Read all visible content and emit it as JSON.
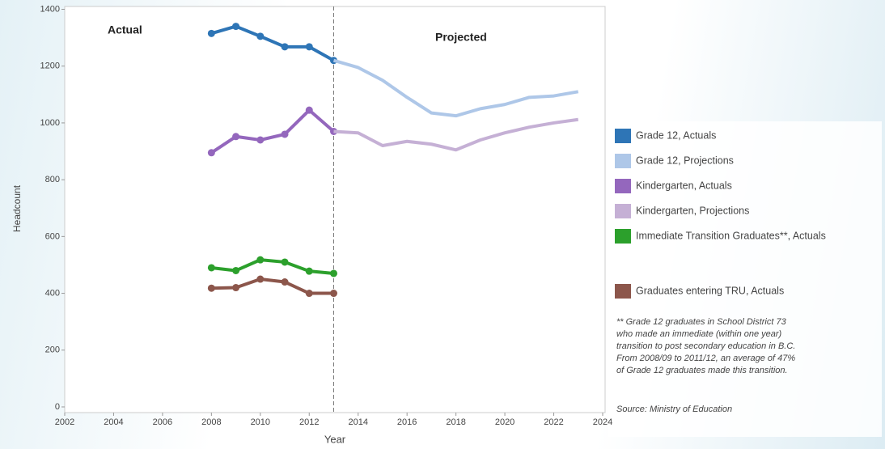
{
  "chart_data": {
    "type": "line",
    "x_label": "Year",
    "y_label": "Headcount",
    "annotations": [
      "Actual",
      "Projected"
    ],
    "divider_x": 2013,
    "x": [
      2008,
      2009,
      2010,
      2011,
      2012,
      2013,
      2014,
      2015,
      2016,
      2017,
      2018,
      2019,
      2020,
      2021,
      2022,
      2023
    ],
    "series": [
      {
        "name": "Grade 12, Actuals",
        "color": "#2e75b6",
        "markers": true,
        "values": [
          1315,
          1340,
          1305,
          1268,
          1268,
          1220,
          null,
          null,
          null,
          null,
          null,
          null,
          null,
          null,
          null,
          null
        ]
      },
      {
        "name": "Grade 12, Projections",
        "color": "#aec7e8",
        "markers": false,
        "values": [
          null,
          null,
          null,
          null,
          null,
          1220,
          1195,
          1150,
          1090,
          1035,
          1025,
          1050,
          1065,
          1090,
          1095,
          1110
        ]
      },
      {
        "name": "Kindergarten, Actuals",
        "color": "#9467bd",
        "markers": true,
        "values": [
          895,
          952,
          940,
          960,
          1045,
          970,
          null,
          null,
          null,
          null,
          null,
          null,
          null,
          null,
          null,
          null
        ]
      },
      {
        "name": "Kindergarten, Projections",
        "color": "#c5b0d5",
        "markers": false,
        "values": [
          null,
          null,
          null,
          null,
          null,
          970,
          965,
          920,
          935,
          925,
          905,
          940,
          965,
          985,
          1000,
          1012
        ]
      },
      {
        "name": "Immediate Transition Graduates**, Actuals",
        "color": "#2ca02c",
        "markers": true,
        "values": [
          490,
          480,
          518,
          510,
          478,
          470,
          null,
          null,
          null,
          null,
          null,
          null,
          null,
          null,
          null,
          null
        ]
      },
      {
        "name": "Graduates entering TRU, Actuals",
        "color": "#8c564b",
        "markers": true,
        "values": [
          418,
          420,
          450,
          440,
          400,
          400,
          null,
          null,
          null,
          null,
          null,
          null,
          null,
          null,
          null,
          null
        ]
      }
    ],
    "xlim": [
      2002,
      2024.1
    ],
    "xticks": [
      2002,
      2004,
      2006,
      2008,
      2010,
      2012,
      2014,
      2016,
      2018,
      2020,
      2022,
      2024
    ],
    "ylim": [
      -20,
      1410
    ],
    "yticks": [
      0,
      200,
      400,
      600,
      800,
      1000,
      1200,
      1400
    ],
    "footnote": [
      "** Grade 12 graduates in School District 73",
      "who made an immediate (within one year)",
      "transition to post secondary education in B.C.",
      "From 2008/09 to 2011/12, an average of 47%",
      "of Grade 12 graduates made this transition."
    ],
    "source": "Source: Ministry of Education"
  }
}
